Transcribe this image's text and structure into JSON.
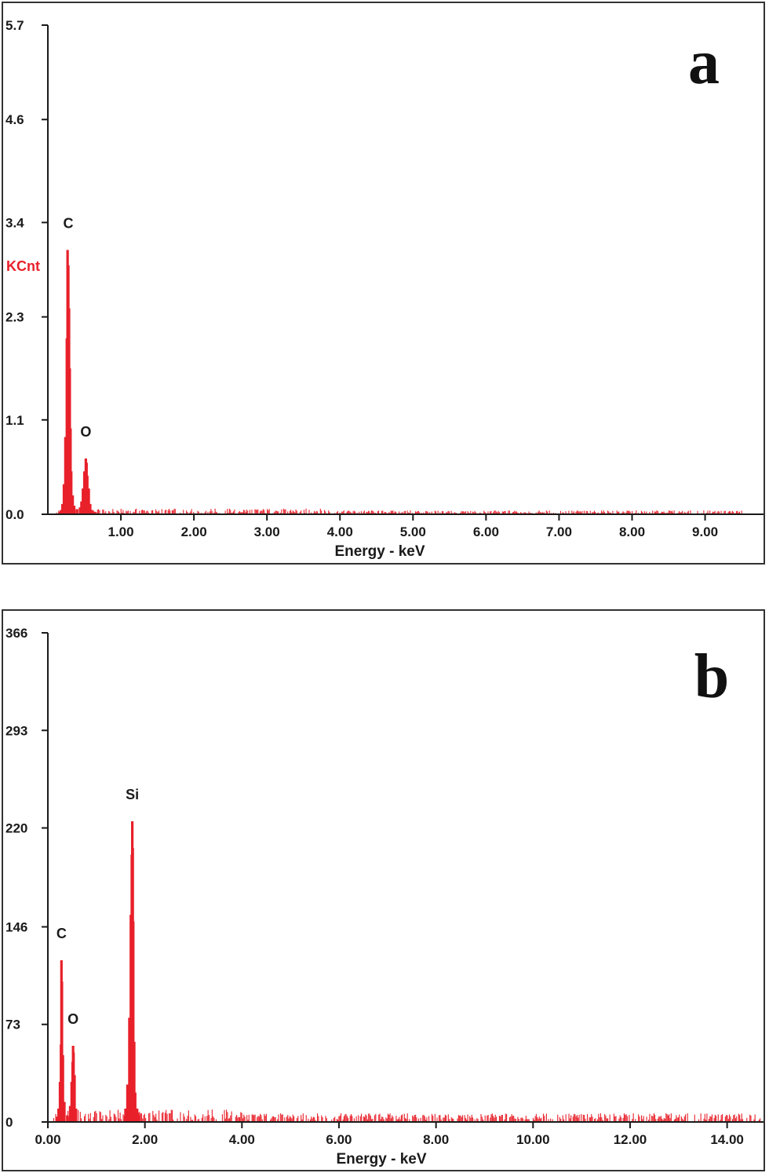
{
  "colors": {
    "spectrum": "#e8202a",
    "axis": "#1a1a1a",
    "unit_label": "#e8202a",
    "frame": "#333333"
  },
  "chart_data": [
    {
      "type": "bar",
      "panel_label": "a",
      "xlabel": "Energy - keV",
      "ylabel": "KCnt",
      "xlim": [
        0,
        9.8
      ],
      "ylim": [
        0,
        5.7
      ],
      "yticks": [
        0.0,
        1.1,
        2.3,
        3.4,
        4.6,
        5.7
      ],
      "ytick_labels": [
        "0.0",
        "1.1",
        "2.3",
        "3.4",
        "4.6",
        "5.7"
      ],
      "xticks": [
        1,
        2,
        3,
        4,
        5,
        6,
        7,
        8,
        9
      ],
      "xtick_labels": [
        "1.00",
        "2.00",
        "3.00",
        "4.00",
        "5.00",
        "6.00",
        "7.00",
        "8.00",
        "9.00"
      ],
      "peaks": [
        {
          "label": "C",
          "x": 0.28,
          "y": 3.08
        },
        {
          "label": "O",
          "x": 0.52,
          "y": 0.65
        }
      ],
      "series": [
        {
          "x": [
            0.16,
            0.18,
            0.2,
            0.22,
            0.24,
            0.26,
            0.27,
            0.28,
            0.29,
            0.3,
            0.31,
            0.32,
            0.34,
            0.36,
            0.4,
            0.44,
            0.46,
            0.48,
            0.5,
            0.52,
            0.53,
            0.54,
            0.56,
            0.58,
            0.6,
            0.64
          ],
          "y": [
            0.03,
            0.05,
            0.12,
            0.35,
            0.9,
            2.05,
            3.08,
            2.9,
            2.4,
            1.7,
            1.0,
            0.5,
            0.22,
            0.1,
            0.06,
            0.08,
            0.15,
            0.3,
            0.5,
            0.65,
            0.6,
            0.45,
            0.3,
            0.12,
            0.05,
            0.03
          ]
        }
      ],
      "noise_baseline": 0.035,
      "noise_end": 9.5
    },
    {
      "type": "bar",
      "panel_label": "b",
      "xlabel": "Energy - keV",
      "ylabel": "",
      "xlim": [
        0,
        14.75
      ],
      "ylim": [
        0,
        366
      ],
      "yticks": [
        0,
        73,
        146,
        220,
        293,
        366
      ],
      "ytick_labels": [
        "0",
        "73",
        "146",
        "220",
        "293",
        "366"
      ],
      "xticks": [
        0,
        2,
        4,
        6,
        8,
        10,
        12,
        14
      ],
      "xtick_labels": [
        "0.00",
        "2.00",
        "4.00",
        "6.00",
        "8.00",
        "10.00",
        "12.00",
        "14.00"
      ],
      "peaks": [
        {
          "label": "C",
          "x": 0.28,
          "y": 121
        },
        {
          "label": "O",
          "x": 0.52,
          "y": 57
        },
        {
          "label": "Si",
          "x": 1.74,
          "y": 225
        }
      ],
      "series": [
        {
          "x": [
            0.18,
            0.22,
            0.25,
            0.27,
            0.28,
            0.29,
            0.31,
            0.34,
            0.4,
            0.46,
            0.49,
            0.51,
            0.52,
            0.53,
            0.55,
            0.58,
            1.6,
            1.64,
            1.68,
            1.71,
            1.73,
            1.74,
            1.75,
            1.76,
            1.78,
            1.8,
            1.84,
            1.88
          ],
          "y": [
            4,
            10,
            30,
            58,
            121,
            105,
            50,
            15,
            5,
            12,
            30,
            45,
            57,
            52,
            35,
            10,
            10,
            28,
            78,
            155,
            200,
            225,
            205,
            150,
            60,
            22,
            10,
            5
          ]
        }
      ],
      "noise_baseline": 5,
      "noise_end": 14.7
    }
  ]
}
